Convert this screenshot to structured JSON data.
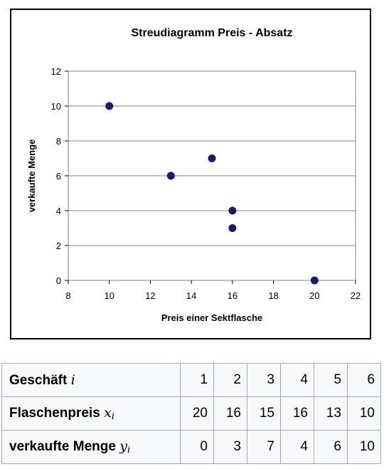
{
  "chart_data": {
    "type": "scatter",
    "title": "Streudiagramm Preis - Absatz",
    "xlabel": "Preis einer Sektflasche",
    "ylabel": "verkaufte Menge",
    "xlim": [
      8,
      22
    ],
    "ylim": [
      0,
      12
    ],
    "x_ticks": [
      8,
      10,
      12,
      14,
      16,
      18,
      20,
      22
    ],
    "y_ticks": [
      0,
      2,
      4,
      6,
      8,
      10,
      12
    ],
    "grid": "horizontal",
    "marker_color": "#1a1a6e",
    "points": [
      {
        "x": 20,
        "y": 0
      },
      {
        "x": 16,
        "y": 3
      },
      {
        "x": 15,
        "y": 7
      },
      {
        "x": 16,
        "y": 4
      },
      {
        "x": 13,
        "y": 6
      },
      {
        "x": 10,
        "y": 10
      }
    ]
  },
  "table": {
    "rows": [
      {
        "label": "Geschäft",
        "var": "i",
        "sub": "",
        "values": [
          "1",
          "2",
          "3",
          "4",
          "5",
          "6"
        ]
      },
      {
        "label": "Flaschenpreis",
        "var": "x",
        "sub": "i",
        "values": [
          "20",
          "16",
          "15",
          "16",
          "13",
          "10"
        ]
      },
      {
        "label": "verkaufte Menge",
        "var": "y",
        "sub": "i",
        "values": [
          "0",
          "3",
          "7",
          "4",
          "6",
          "10"
        ]
      }
    ]
  }
}
